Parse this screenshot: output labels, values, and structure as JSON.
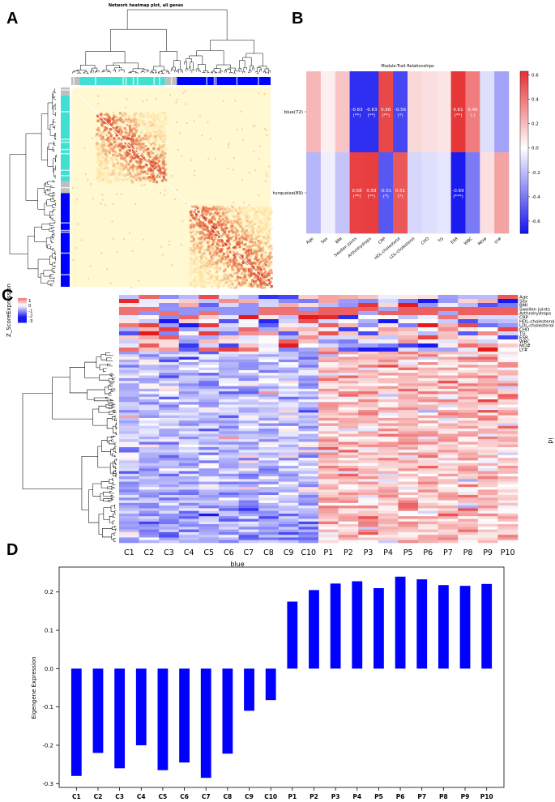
{
  "panels": {
    "a_letter": "A",
    "b_letter": "B",
    "c_letter": "C",
    "d_letter": "D"
  },
  "colors": {
    "turquoise": "#40e0d0",
    "blue": "#0000ff",
    "grey": "#bebebe",
    "heat_bg": "#fff8d0",
    "heat_hot": "#d7301f",
    "pos": "#e41a1c",
    "neg": "#1f1ff0",
    "bar": "#0000ff"
  },
  "chart_data": [
    {
      "id": "A",
      "type": "heatmap",
      "title": "Network heatmap plot, all genes",
      "modules": [
        {
          "name": "grey",
          "fraction": 0.04
        },
        {
          "name": "turquoise",
          "fraction": 0.43
        },
        {
          "name": "grey",
          "fraction": 0.06
        },
        {
          "name": "blue",
          "fraction": 0.47
        }
      ]
    },
    {
      "id": "B",
      "type": "heatmap",
      "title": "Module-Trait Relationships",
      "rows": [
        "blue(72)",
        "turquoise(89)"
      ],
      "columns": [
        "Age",
        "Sex",
        "BMI",
        "Swollen joints",
        "Arthrohydrops",
        "CRP",
        "HDL-cholesterol",
        "LDL-cholesterol",
        "CHO",
        "TG",
        "ESR",
        "WBC",
        "MO#",
        "LY#"
      ],
      "values": [
        [
          0.22,
          0.05,
          0.18,
          -0.63,
          -0.63,
          0.56,
          -0.56,
          0.12,
          0.1,
          0.08,
          0.61,
          0.4,
          -0.1,
          -0.28
        ],
        [
          -0.22,
          -0.05,
          -0.18,
          0.58,
          0.59,
          -0.51,
          0.51,
          -0.12,
          -0.1,
          -0.08,
          -0.69,
          -0.4,
          0.1,
          0.28
        ]
      ],
      "cell_labels": [
        [
          "",
          "",
          "",
          "-0.63\n(**)",
          "-0.63\n(**)",
          "0.56\n(**)",
          "-0.56\n(*)",
          "",
          "",
          "",
          "0.61\n(**)",
          "0.40\n(.)",
          "",
          ""
        ],
        [
          "",
          "",
          "",
          "0.58\n(**)",
          "0.59\n(**)",
          "-0.51\n(*)",
          "0.51\n(*)",
          "",
          "",
          "",
          "-0.69\n(***)",
          "",
          "",
          ""
        ]
      ],
      "colorbar_ticks": [
        "0.6",
        "0.4",
        "0.2",
        "0.0",
        "-0.2",
        "-0.4",
        "-0.6"
      ],
      "colorbar_range": [
        -0.7,
        0.63
      ]
    },
    {
      "id": "C",
      "type": "heatmap",
      "legend_title": "Z_ScoreExpression",
      "legend_ticks": [
        "1",
        "0",
        "-1",
        "-2",
        "-3"
      ],
      "trait_labels": [
        "Age",
        "Sex",
        "BMI",
        "Swollen joints",
        "Arthrohydrops",
        "CRP",
        "HDL-cholesterol",
        "LDL-cholesterol",
        "CHO",
        "TG",
        "ESR",
        "WBC",
        "MO#",
        "LY#"
      ],
      "samples": [
        "C1",
        "C2",
        "C3",
        "C4",
        "C5",
        "C6",
        "C7",
        "C8",
        "C9",
        "C10",
        "P1",
        "P2",
        "P3",
        "P4",
        "P5",
        "P6",
        "P7",
        "P8",
        "P9",
        "P10"
      ],
      "xlabel": "blue",
      "ylabel": "id",
      "n_genes": 72,
      "control_mean_z": -0.6,
      "patient_mean_z": 0.55
    },
    {
      "id": "D",
      "type": "bar",
      "categories": [
        "C1",
        "C2",
        "C3",
        "C4",
        "C5",
        "C6",
        "C7",
        "C8",
        "C9",
        "C10",
        "P1",
        "P2",
        "P3",
        "P4",
        "P5",
        "P6",
        "P7",
        "P8",
        "P9",
        "P10"
      ],
      "values": [
        -0.28,
        -0.22,
        -0.26,
        -0.2,
        -0.265,
        -0.245,
        -0.285,
        -0.222,
        -0.11,
        -0.082,
        0.175,
        0.205,
        0.222,
        0.228,
        0.21,
        0.24,
        0.233,
        0.218,
        0.216,
        0.221
      ],
      "ylabel": "Eigengene Expression",
      "xlabel": "",
      "ylim": [
        -0.31,
        0.265
      ],
      "yticks": [
        -0.3,
        -0.2,
        -0.1,
        0.0,
        0.1,
        0.2
      ],
      "ytick_labels": [
        "-0.3",
        "-0.2",
        "-0.1",
        "0.0",
        "0.1",
        "0.2"
      ]
    }
  ]
}
